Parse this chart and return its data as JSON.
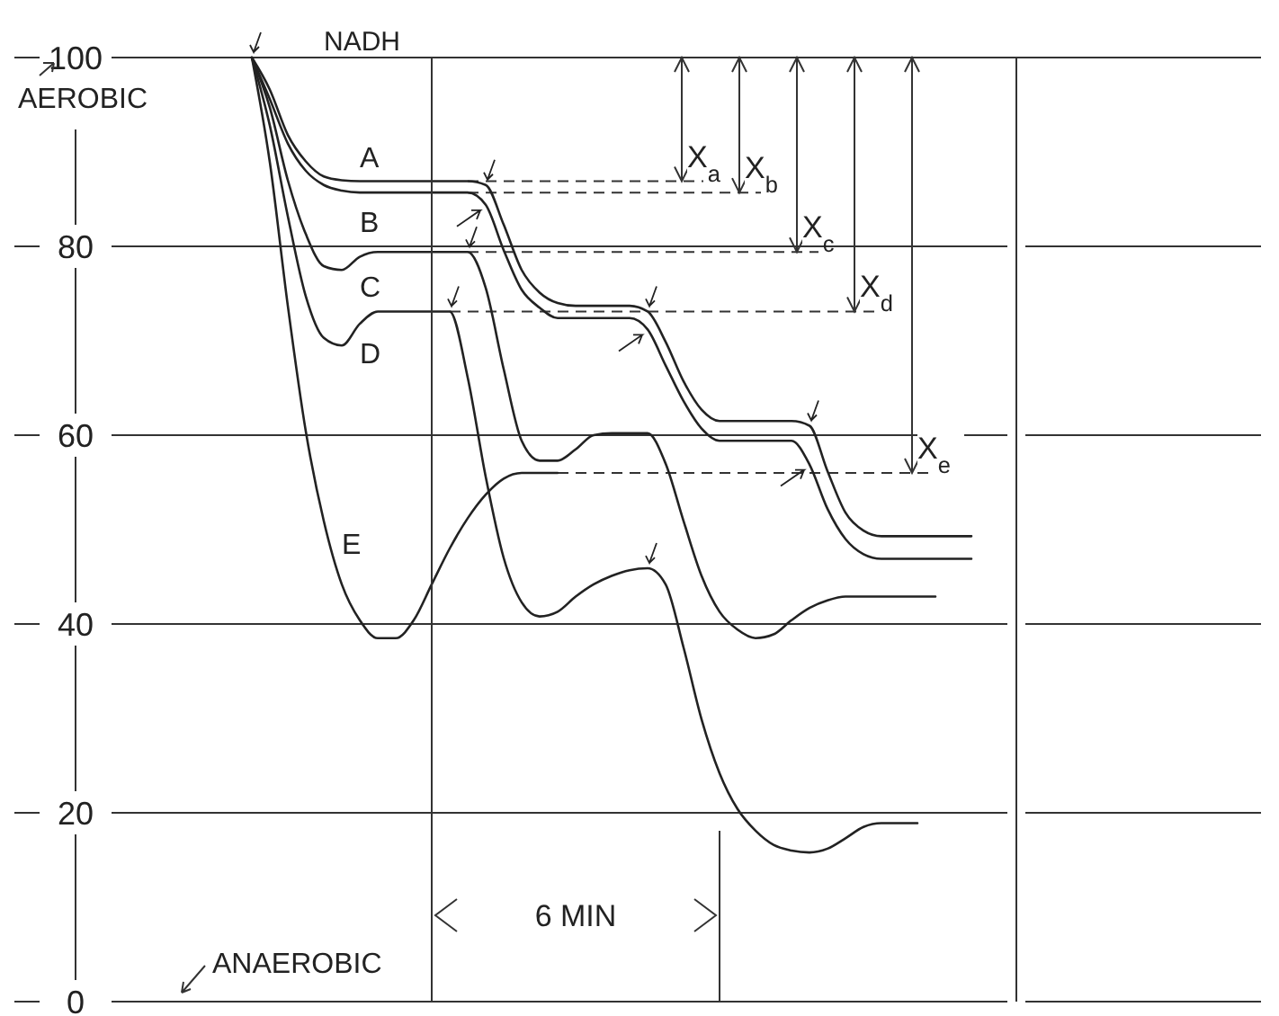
{
  "chart_data": {
    "type": "line",
    "categories": [
      null,
      null,
      null,
      null,
      null,
      null,
      null,
      null,
      null,
      null,
      null,
      null,
      null,
      null,
      null,
      null,
      null,
      null,
      null,
      null,
      null,
      null,
      null,
      null,
      null,
      null,
      null,
      null,
      null,
      null,
      null,
      null,
      null,
      null,
      null,
      null,
      null,
      null,
      null,
      null,
      null
    ],
    "series": [
      {
        "name": "A",
        "color": "#222222",
        "values": [
          100,
          96.6,
          91.8,
          89.0,
          87.4,
          87.0,
          86.9,
          86.9,
          86.9,
          86.9,
          86.9,
          86.9,
          86.9,
          86.5,
          82.3,
          77.5,
          75.1,
          74.0,
          73.7,
          73.7,
          73.7,
          73.7,
          73.1,
          69.9,
          65.7,
          62.7,
          61.5,
          61.5,
          61.5,
          61.5,
          61.5,
          61.0,
          56.2,
          51.8,
          49.9,
          49.3,
          49.3,
          49.3,
          49.3,
          49.3,
          49.3
        ]
      },
      {
        "name": "B",
        "color": "#222222",
        "values": [
          100,
          95.6,
          90.9,
          88.0,
          86.5,
          85.9,
          85.7,
          85.7,
          85.7,
          85.7,
          85.7,
          85.7,
          85.7,
          84.4,
          79.6,
          75.4,
          73.5,
          72.4,
          72.4,
          72.4,
          72.4,
          72.4,
          71.2,
          67.4,
          63.6,
          60.7,
          59.4,
          59.4,
          59.4,
          59.4,
          59.4,
          56.9,
          52.2,
          49.0,
          47.4,
          46.9,
          46.9,
          46.9,
          46.9,
          46.9,
          46.9
        ]
      },
      {
        "name": "C",
        "color": "#222222",
        "values": [
          100,
          94.7,
          87.0,
          81.3,
          77.9,
          77.5,
          78.9,
          79.4,
          79.4,
          79.4,
          79.4,
          79.4,
          79.4,
          75.6,
          67.0,
          59.4,
          57.3,
          57.3,
          58.5,
          60.0,
          60.2,
          60.2,
          60.2,
          57.0,
          50.9,
          45.1,
          41.3,
          39.4,
          38.5,
          38.9,
          40.4,
          41.7,
          42.5,
          42.9,
          42.9,
          42.9,
          42.9,
          42.9,
          42.9,
          null,
          null
        ]
      },
      {
        "name": "D",
        "color": "#222222",
        "values": [
          100,
          92.8,
          83.2,
          74.7,
          70.3,
          69.5,
          71.8,
          73.1,
          73.1,
          73.1,
          73.1,
          73.1,
          66.1,
          55.6,
          47.0,
          42.3,
          40.8,
          41.3,
          42.9,
          44.2,
          45.1,
          45.7,
          45.9,
          44.2,
          37.5,
          29.9,
          24.2,
          20.4,
          18.1,
          16.6,
          16.0,
          15.8,
          16.2,
          17.3,
          18.5,
          18.9,
          18.9,
          18.9,
          null,
          null,
          null
        ]
      },
      {
        "name": "E",
        "color": "#222222",
        "values": [
          100,
          88.9,
          73.7,
          60.4,
          50.9,
          44.2,
          40.4,
          38.5,
          38.5,
          40.4,
          44.2,
          48.0,
          51.2,
          53.7,
          55.4,
          56.0,
          56.0,
          56.0,
          null,
          null,
          null,
          null,
          null,
          null,
          null,
          null,
          null,
          null,
          null,
          null,
          null,
          null,
          null,
          null,
          null,
          null,
          null,
          null,
          null,
          null,
          null
        ]
      }
    ],
    "ylim": [
      0,
      100
    ],
    "yticks": [
      0,
      20,
      40,
      60,
      80,
      100
    ],
    "grid": "y",
    "tick_labels": "y",
    "ref_lines": [
      {
        "axis": "y",
        "value": 86.9,
        "label": "X$_{a}$",
        "line_style": "dashed"
      },
      {
        "axis": "y",
        "value": 85.7,
        "label": "X$_{b}$",
        "line_style": "dashed"
      },
      {
        "axis": "y",
        "value": 79.4,
        "label": "X$_{c}$",
        "line_style": "dashed"
      },
      {
        "axis": "y",
        "value": 73.1,
        "label": "X$_{d}$",
        "line_style": "dashed"
      },
      {
        "axis": "y",
        "value": 56.0,
        "label": "X$_{e}$",
        "line_style": "dashed"
      }
    ],
    "annotations": [
      "NADH",
      "6 MIN",
      "AEROBIC",
      "ANAEROBIC"
    ]
  }
}
